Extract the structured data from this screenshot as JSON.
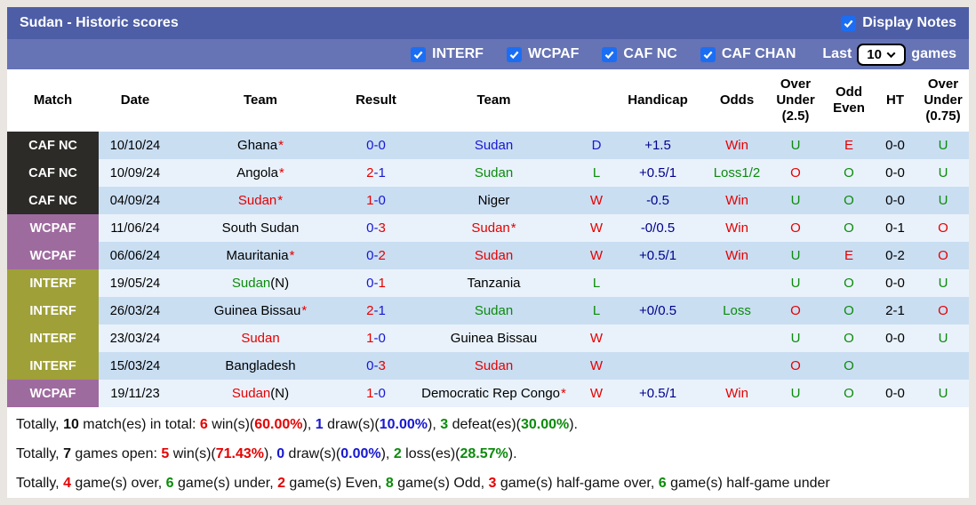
{
  "colors": {
    "red": "#e60000",
    "green": "#0b8b0b",
    "blue": "#1717d1",
    "black": "#000000",
    "navy": "#00008b",
    "checkbox_accent": "#1b6ef3",
    "title_bar_bg": "#4d5ea6",
    "filter_bar_bg": "#6673b4",
    "row_odd_bg": "#cadef2",
    "row_even_bg": "#e9f2fb",
    "competition": {
      "caf-nc": "#2d2b28",
      "wcpaf": "#9e6b9f",
      "interf": "#9fa038"
    }
  },
  "title_bar": {
    "title": "Sudan - Historic scores",
    "display_notes_label": "Display Notes",
    "display_notes_checked": true
  },
  "filter_bar": {
    "filters": [
      {
        "label": "INTERF",
        "checked": true
      },
      {
        "label": "WCPAF",
        "checked": true
      },
      {
        "label": "CAF NC",
        "checked": true
      },
      {
        "label": "CAF CHAN",
        "checked": true
      }
    ],
    "last_label": "Last",
    "last_value": "10",
    "games_label": "games"
  },
  "table": {
    "columns": [
      "Match",
      "Date",
      "Team",
      "Result",
      "Team",
      "",
      "Handicap",
      "Odds",
      "Over\nUnder\n(2.5)",
      "Odd\nEven",
      "HT",
      "Over\nUnder\n(0.75)"
    ],
    "rows": [
      {
        "comp": "CAF NC",
        "comp_class": "caf-nc",
        "date": "10/10/24",
        "home": {
          "name": "Ghana",
          "color": "black",
          "star": true
        },
        "score": {
          "home": "0",
          "home_color": "blue",
          "away": "0",
          "away_color": "blue"
        },
        "away": {
          "name": "Sudan",
          "color": "blue"
        },
        "wdl": {
          "text": "D",
          "color": "blue"
        },
        "handicap": "+1.5",
        "odds": {
          "text": "Win",
          "color": "red"
        },
        "ou25": {
          "text": "U",
          "color": "green"
        },
        "oddeven": {
          "text": "E",
          "color": "red"
        },
        "ht": "0-0",
        "ou075": {
          "text": "U",
          "color": "green"
        }
      },
      {
        "comp": "CAF NC",
        "comp_class": "caf-nc",
        "date": "10/09/24",
        "home": {
          "name": "Angola",
          "color": "black",
          "star": true
        },
        "score": {
          "home": "2",
          "home_color": "red",
          "away": "1",
          "away_color": "blue"
        },
        "away": {
          "name": "Sudan",
          "color": "green"
        },
        "wdl": {
          "text": "L",
          "color": "green"
        },
        "handicap": "+0.5/1",
        "odds": {
          "text": "Loss1/2",
          "color": "green"
        },
        "ou25": {
          "text": "O",
          "color": "red"
        },
        "oddeven": {
          "text": "O",
          "color": "green"
        },
        "ht": "0-0",
        "ou075": {
          "text": "U",
          "color": "green"
        }
      },
      {
        "comp": "CAF NC",
        "comp_class": "caf-nc",
        "date": "04/09/24",
        "home": {
          "name": "Sudan",
          "color": "red",
          "star": true
        },
        "score": {
          "home": "1",
          "home_color": "red",
          "away": "0",
          "away_color": "blue"
        },
        "away": {
          "name": "Niger",
          "color": "black"
        },
        "wdl": {
          "text": "W",
          "color": "red"
        },
        "handicap": "-0.5",
        "odds": {
          "text": "Win",
          "color": "red"
        },
        "ou25": {
          "text": "U",
          "color": "green"
        },
        "oddeven": {
          "text": "O",
          "color": "green"
        },
        "ht": "0-0",
        "ou075": {
          "text": "U",
          "color": "green"
        }
      },
      {
        "comp": "WCPAF",
        "comp_class": "wcpaf",
        "date": "11/06/24",
        "home": {
          "name": "South Sudan",
          "color": "black"
        },
        "score": {
          "home": "0",
          "home_color": "blue",
          "away": "3",
          "away_color": "red"
        },
        "away": {
          "name": "Sudan",
          "color": "red",
          "star": true
        },
        "wdl": {
          "text": "W",
          "color": "red"
        },
        "handicap": "-0/0.5",
        "odds": {
          "text": "Win",
          "color": "red"
        },
        "ou25": {
          "text": "O",
          "color": "red"
        },
        "oddeven": {
          "text": "O",
          "color": "green"
        },
        "ht": "0-1",
        "ou075": {
          "text": "O",
          "color": "red"
        }
      },
      {
        "comp": "WCPAF",
        "comp_class": "wcpaf",
        "date": "06/06/24",
        "home": {
          "name": "Mauritania",
          "color": "black",
          "star": true
        },
        "score": {
          "home": "0",
          "home_color": "blue",
          "away": "2",
          "away_color": "red"
        },
        "away": {
          "name": "Sudan",
          "color": "red"
        },
        "wdl": {
          "text": "W",
          "color": "red"
        },
        "handicap": "+0.5/1",
        "odds": {
          "text": "Win",
          "color": "red"
        },
        "ou25": {
          "text": "U",
          "color": "green"
        },
        "oddeven": {
          "text": "E",
          "color": "red"
        },
        "ht": "0-2",
        "ou075": {
          "text": "O",
          "color": "red"
        }
      },
      {
        "comp": "INTERF",
        "comp_class": "interf",
        "date": "19/05/24",
        "home": {
          "name": "Sudan",
          "color": "green",
          "suffix": "(N)"
        },
        "score": {
          "home": "0",
          "home_color": "blue",
          "away": "1",
          "away_color": "red"
        },
        "away": {
          "name": "Tanzania",
          "color": "black"
        },
        "wdl": {
          "text": "L",
          "color": "green"
        },
        "handicap": "",
        "odds": {
          "text": "",
          "color": "black"
        },
        "ou25": {
          "text": "U",
          "color": "green"
        },
        "oddeven": {
          "text": "O",
          "color": "green"
        },
        "ht": "0-0",
        "ou075": {
          "text": "U",
          "color": "green"
        }
      },
      {
        "comp": "INTERF",
        "comp_class": "interf",
        "date": "26/03/24",
        "home": {
          "name": "Guinea Bissau",
          "color": "black",
          "star": true
        },
        "score": {
          "home": "2",
          "home_color": "red",
          "away": "1",
          "away_color": "blue"
        },
        "away": {
          "name": "Sudan",
          "color": "green"
        },
        "wdl": {
          "text": "L",
          "color": "green"
        },
        "handicap": "+0/0.5",
        "odds": {
          "text": "Loss",
          "color": "green"
        },
        "ou25": {
          "text": "O",
          "color": "red"
        },
        "oddeven": {
          "text": "O",
          "color": "green"
        },
        "ht": "2-1",
        "ou075": {
          "text": "O",
          "color": "red"
        }
      },
      {
        "comp": "INTERF",
        "comp_class": "interf",
        "date": "23/03/24",
        "home": {
          "name": "Sudan",
          "color": "red"
        },
        "score": {
          "home": "1",
          "home_color": "red",
          "away": "0",
          "away_color": "blue"
        },
        "away": {
          "name": "Guinea Bissau",
          "color": "black"
        },
        "wdl": {
          "text": "W",
          "color": "red"
        },
        "handicap": "",
        "odds": {
          "text": "",
          "color": "black"
        },
        "ou25": {
          "text": "U",
          "color": "green"
        },
        "oddeven": {
          "text": "O",
          "color": "green"
        },
        "ht": "0-0",
        "ou075": {
          "text": "U",
          "color": "green"
        }
      },
      {
        "comp": "INTERF",
        "comp_class": "interf",
        "date": "15/03/24",
        "home": {
          "name": "Bangladesh",
          "color": "black"
        },
        "score": {
          "home": "0",
          "home_color": "blue",
          "away": "3",
          "away_color": "red"
        },
        "away": {
          "name": "Sudan",
          "color": "red"
        },
        "wdl": {
          "text": "W",
          "color": "red"
        },
        "handicap": "",
        "odds": {
          "text": "",
          "color": "black"
        },
        "ou25": {
          "text": "O",
          "color": "red"
        },
        "oddeven": {
          "text": "O",
          "color": "green"
        },
        "ht": "",
        "ou075": {
          "text": "",
          "color": "black"
        }
      },
      {
        "comp": "WCPAF",
        "comp_class": "wcpaf",
        "date": "19/11/23",
        "home": {
          "name": "Sudan",
          "color": "red",
          "suffix": "(N)"
        },
        "score": {
          "home": "1",
          "home_color": "red",
          "away": "0",
          "away_color": "blue"
        },
        "away": {
          "name": "Democratic Rep Congo",
          "color": "black",
          "star": true
        },
        "wdl": {
          "text": "W",
          "color": "red"
        },
        "handicap": "+0.5/1",
        "odds": {
          "text": "Win",
          "color": "red"
        },
        "ou25": {
          "text": "U",
          "color": "green"
        },
        "oddeven": {
          "text": "O",
          "color": "green"
        },
        "ht": "0-0",
        "ou075": {
          "text": "U",
          "color": "green"
        }
      }
    ]
  },
  "summary": {
    "lines": [
      [
        {
          "text": "Totally, "
        },
        {
          "text": "10",
          "bold": true
        },
        {
          "text": " match(es) in total: "
        },
        {
          "text": "6",
          "color": "red",
          "bold": true
        },
        {
          "text": " win(s)("
        },
        {
          "text": "60.00%",
          "color": "red",
          "bold": true
        },
        {
          "text": "), "
        },
        {
          "text": "1",
          "color": "blue",
          "bold": true
        },
        {
          "text": " draw(s)("
        },
        {
          "text": "10.00%",
          "color": "blue",
          "bold": true
        },
        {
          "text": "), "
        },
        {
          "text": "3",
          "color": "green",
          "bold": true
        },
        {
          "text": " defeat(es)("
        },
        {
          "text": "30.00%",
          "color": "green",
          "bold": true
        },
        {
          "text": ")."
        }
      ],
      [
        {
          "text": "Totally, "
        },
        {
          "text": "7",
          "bold": true
        },
        {
          "text": " games open: "
        },
        {
          "text": "5",
          "color": "red",
          "bold": true
        },
        {
          "text": " win(s)("
        },
        {
          "text": "71.43%",
          "color": "red",
          "bold": true
        },
        {
          "text": "), "
        },
        {
          "text": "0",
          "color": "blue",
          "bold": true
        },
        {
          "text": " draw(s)("
        },
        {
          "text": "0.00%",
          "color": "blue",
          "bold": true
        },
        {
          "text": "), "
        },
        {
          "text": "2",
          "color": "green",
          "bold": true
        },
        {
          "text": " loss(es)("
        },
        {
          "text": "28.57%",
          "color": "green",
          "bold": true
        },
        {
          "text": ")."
        }
      ],
      [
        {
          "text": "Totally, "
        },
        {
          "text": "4",
          "color": "red",
          "bold": true
        },
        {
          "text": " game(s) over, "
        },
        {
          "text": "6",
          "color": "green",
          "bold": true
        },
        {
          "text": " game(s) under, "
        },
        {
          "text": "2",
          "color": "red",
          "bold": true
        },
        {
          "text": " game(s) Even, "
        },
        {
          "text": "8",
          "color": "green",
          "bold": true
        },
        {
          "text": " game(s) Odd, "
        },
        {
          "text": "3",
          "color": "red",
          "bold": true
        },
        {
          "text": " game(s) half-game over, "
        },
        {
          "text": "6",
          "color": "green",
          "bold": true
        },
        {
          "text": " game(s) half-game under"
        }
      ]
    ]
  }
}
